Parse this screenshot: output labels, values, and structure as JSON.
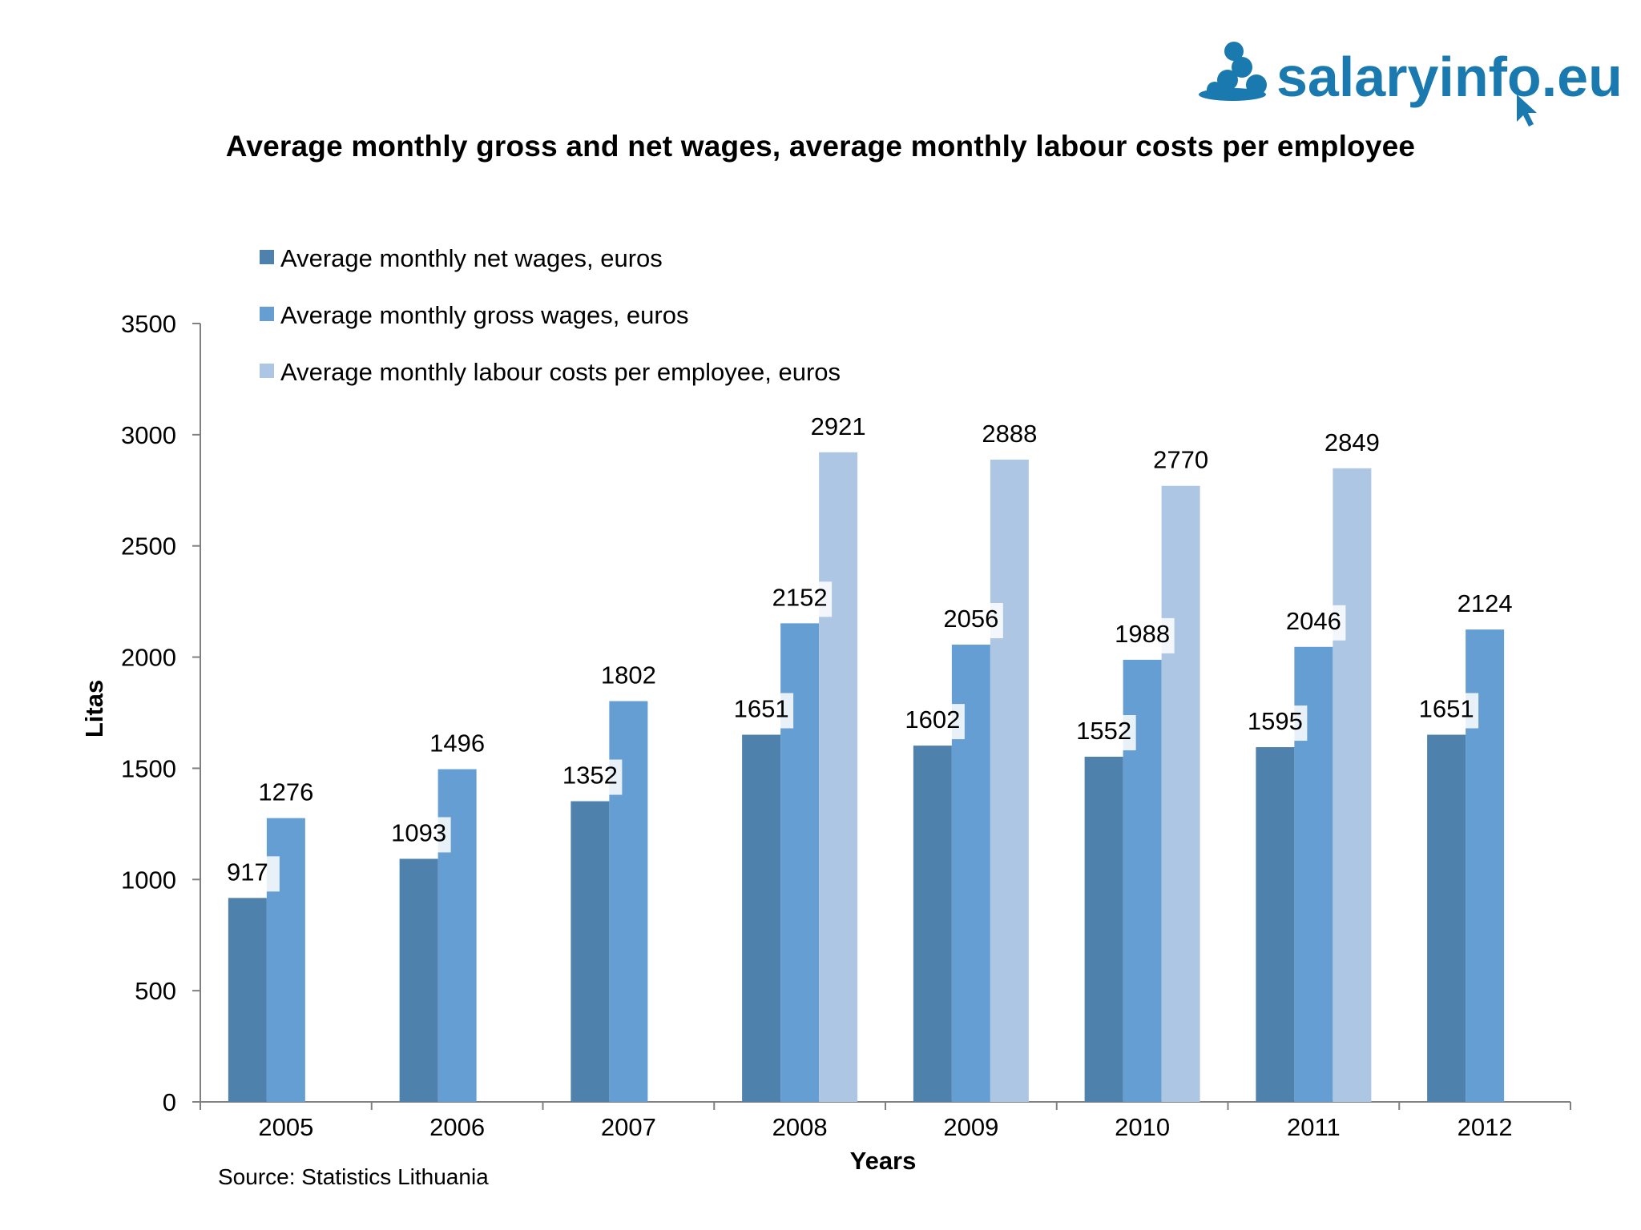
{
  "brand": {
    "name": "salaryinfo.eu",
    "color": "#1a7ab0"
  },
  "source_note": "Source: Statistics Lithuania",
  "chart_data": {
    "type": "bar",
    "title": "Average monthly gross and net wages, average monthly labour costs per employee",
    "xlabel": "Years",
    "ylabel": "Litas",
    "ylim": [
      0,
      3500
    ],
    "yticks": [
      0,
      500,
      1000,
      1500,
      2000,
      2500,
      3000,
      3500
    ],
    "grid": false,
    "legend_position": "top-left",
    "categories": [
      "2005",
      "2006",
      "2007",
      "2008",
      "2009",
      "2010",
      "2011",
      "2012"
    ],
    "series": [
      {
        "name": "Average monthly net wages, euros",
        "color": "#4f81ad",
        "values": [
          917,
          1093,
          1352,
          1651,
          1602,
          1552,
          1595,
          1651
        ]
      },
      {
        "name": "Average monthly gross wages, euros",
        "color": "#649ed2",
        "values": [
          1276,
          1496,
          1802,
          2152,
          2056,
          1988,
          2046,
          2124
        ]
      },
      {
        "name": "Average monthly labour costs per employee, euros",
        "color": "#adc6e4",
        "values": [
          null,
          null,
          null,
          2921,
          2888,
          2770,
          2849,
          null
        ]
      }
    ]
  }
}
